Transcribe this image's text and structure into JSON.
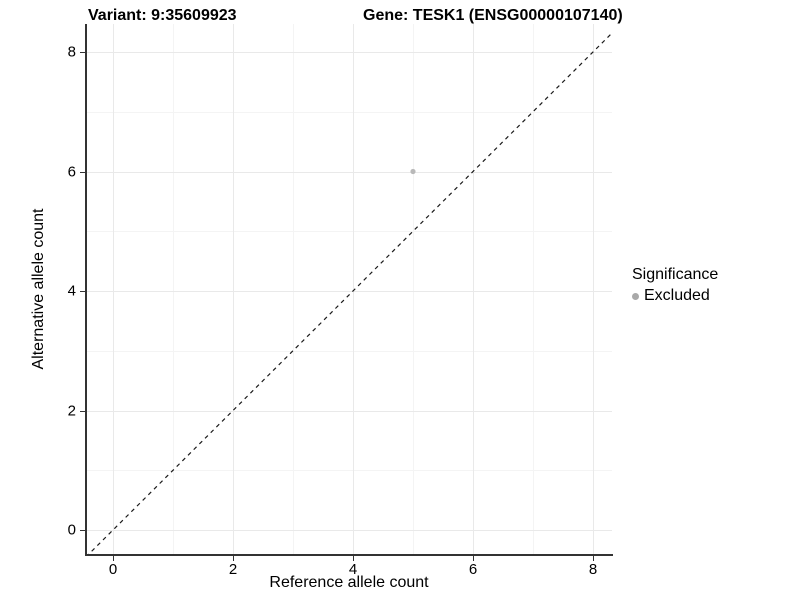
{
  "chart_data": {
    "type": "scatter",
    "title_left": "Variant: 9:35609923",
    "title_right": "Gene: TESK1 (ENSG00000107140)",
    "xlabel": "Reference allele count",
    "ylabel": "Alternative allele count",
    "x_ticks": [
      0,
      2,
      4,
      6,
      8
    ],
    "y_ticks": [
      0,
      2,
      4,
      6,
      8
    ],
    "x_minor_ticks": [
      1,
      3,
      5,
      7
    ],
    "y_minor_ticks": [
      1,
      3,
      5,
      7
    ],
    "xlim": [
      -0.45,
      8.45
    ],
    "ylim": [
      -0.45,
      8.45
    ],
    "grid": "on",
    "points": [
      {
        "x": 5,
        "y": 6,
        "series": "Excluded"
      }
    ],
    "reference_line": {
      "type": "identity",
      "equation": "y = x",
      "style": "dashed"
    },
    "legend": {
      "title": "Significance",
      "position": "right",
      "items": [
        {
          "label": "Excluded",
          "color": "#b3b3b3"
        }
      ]
    },
    "colors": {
      "point": "#b9b9b9",
      "legend_key": "#a9a9a9",
      "grid_major": "#e9e9e9",
      "grid_minor": "#f4f4f4",
      "axis_line": "#333333",
      "dashed_line": "#1a1a1a",
      "background": "#ffffff"
    }
  }
}
